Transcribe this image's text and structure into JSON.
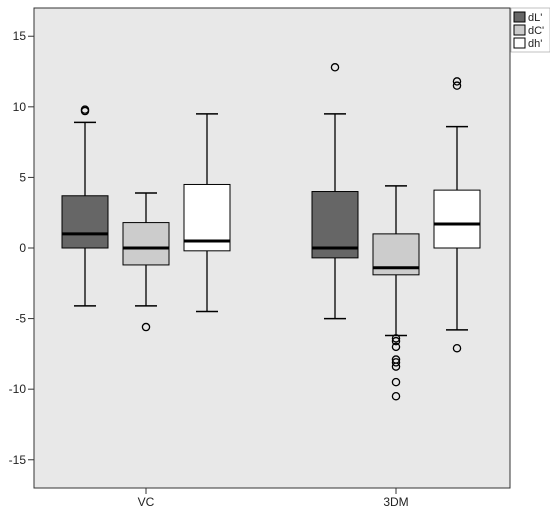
{
  "chart_data": {
    "type": "box",
    "title": "",
    "xlabel": "",
    "ylabel": "",
    "ylim": [
      -17,
      17
    ],
    "yticks": [
      -15,
      -10,
      -5,
      0,
      5,
      10,
      15
    ],
    "categories": [
      "VC",
      "3DM"
    ],
    "grid": false,
    "legend_position": "top-right",
    "colors": {
      "plot_background": "#e8e8e8",
      "outer_background": "#ffffff",
      "axis": "#333333"
    },
    "series": [
      {
        "name": "dL'",
        "fill": "#666666",
        "boxes": [
          {
            "category": "VC",
            "whisker_low": -4.1,
            "q1": 0.0,
            "median": 1.0,
            "q3": 3.7,
            "whisker_high": 8.9,
            "outliers": [
              9.8,
              9.7
            ]
          },
          {
            "category": "3DM",
            "whisker_low": -5.0,
            "q1": -0.7,
            "median": 0.0,
            "q3": 4.0,
            "whisker_high": 9.5,
            "outliers": [
              12.8
            ]
          }
        ]
      },
      {
        "name": "dC'",
        "fill": "#cccccc",
        "boxes": [
          {
            "category": "VC",
            "whisker_low": -4.1,
            "q1": -1.2,
            "median": 0.0,
            "q3": 1.8,
            "whisker_high": 3.9,
            "outliers": [
              -5.6
            ]
          },
          {
            "category": "3DM",
            "whisker_low": -6.2,
            "q1": -1.9,
            "median": -1.4,
            "q3": 1.0,
            "whisker_high": 4.4,
            "outliers": [
              -6.4,
              -6.6,
              -7.0,
              -7.9,
              -8.1,
              -8.4,
              -9.5,
              -10.5
            ]
          }
        ]
      },
      {
        "name": "dh'",
        "fill": "#ffffff",
        "boxes": [
          {
            "category": "VC",
            "whisker_low": -4.5,
            "q1": -0.2,
            "median": 0.5,
            "q3": 4.5,
            "whisker_high": 9.5,
            "outliers": []
          },
          {
            "category": "3DM",
            "whisker_low": -5.8,
            "q1": 0.0,
            "median": 1.7,
            "q3": 4.1,
            "whisker_high": 8.6,
            "outliers": [
              11.8,
              11.5,
              -7.1
            ]
          }
        ]
      }
    ]
  }
}
